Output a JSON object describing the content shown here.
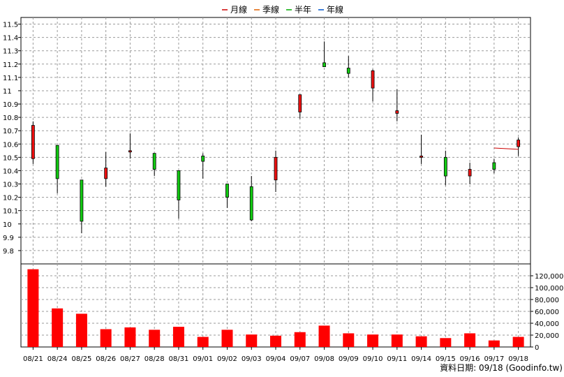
{
  "legend": [
    {
      "label": "月線",
      "color": "#cc0000"
    },
    {
      "label": "季線",
      "color": "#e06000"
    },
    {
      "label": "半年",
      "color": "#00aa00"
    },
    {
      "label": "年線",
      "color": "#0055cc"
    }
  ],
  "source_note": "資料日期: 09/18  (Goodinfo.tw)",
  "chart_data": [
    {
      "type": "candlestick",
      "ylim": [
        9.7,
        11.55
      ],
      "y_ticks": [
        "9.8",
        "9.9",
        "10",
        "10.1",
        "10.2",
        "10.3",
        "10.4",
        "10.5",
        "10.6",
        "10.7",
        "10.8",
        "10.9",
        "11",
        "11.1",
        "11.2",
        "11.3",
        "11.4",
        "11.5"
      ],
      "categories": [
        "08/21",
        "08/24",
        "08/25",
        "08/26",
        "08/27",
        "08/28",
        "08/31",
        "09/01",
        "09/02",
        "09/03",
        "09/04",
        "09/07",
        "09/08",
        "09/09",
        "09/10",
        "09/11",
        "09/14",
        "09/15",
        "09/16",
        "09/17",
        "09/18"
      ],
      "ohlc": [
        {
          "o": 10.49,
          "h": 10.77,
          "l": 10.45,
          "c": 10.74
        },
        {
          "o": 10.59,
          "h": 10.59,
          "l": 10.23,
          "c": 10.34
        },
        {
          "o": 10.33,
          "h": 10.33,
          "l": 9.93,
          "c": 10.02
        },
        {
          "o": 10.34,
          "h": 10.54,
          "l": 10.28,
          "c": 10.42
        },
        {
          "o": 10.54,
          "h": 10.68,
          "l": 10.49,
          "c": 10.55
        },
        {
          "o": 10.53,
          "h": 10.53,
          "l": 10.36,
          "c": 10.41
        },
        {
          "o": 10.4,
          "h": 10.4,
          "l": 10.04,
          "c": 10.18
        },
        {
          "o": 10.51,
          "h": 10.53,
          "l": 10.34,
          "c": 10.47
        },
        {
          "o": 10.3,
          "h": 10.3,
          "l": 10.12,
          "c": 10.2
        },
        {
          "o": 10.28,
          "h": 10.36,
          "l": 10.02,
          "c": 10.03
        },
        {
          "o": 10.33,
          "h": 10.55,
          "l": 10.24,
          "c": 10.5
        },
        {
          "o": 10.84,
          "h": 10.97,
          "l": 10.79,
          "c": 10.97
        },
        {
          "o": 11.21,
          "h": 11.37,
          "l": 11.18,
          "c": 11.18
        },
        {
          "o": 11.17,
          "h": 11.26,
          "l": 11.1,
          "c": 11.13
        },
        {
          "o": 11.02,
          "h": 11.16,
          "l": 10.92,
          "c": 11.15
        },
        {
          "o": 10.83,
          "h": 11.01,
          "l": 10.77,
          "c": 10.85
        },
        {
          "o": 10.5,
          "h": 10.67,
          "l": 10.45,
          "c": 10.51
        },
        {
          "o": 10.5,
          "h": 10.55,
          "l": 10.29,
          "c": 10.36
        },
        {
          "o": 10.36,
          "h": 10.46,
          "l": 10.3,
          "c": 10.41
        },
        {
          "o": 10.46,
          "h": 10.49,
          "l": 10.38,
          "c": 10.41
        },
        {
          "o": 10.58,
          "h": 10.65,
          "l": 10.51,
          "c": 10.63
        }
      ],
      "series": [
        {
          "name": "月線",
          "points": [
            {
              "x": "09/17",
              "y": 10.57
            },
            {
              "x": "09/18",
              "y": 10.56
            }
          ]
        }
      ]
    },
    {
      "type": "bar",
      "ylim": [
        0,
        140000
      ],
      "y_ticks": [
        "0",
        "20,000",
        "40,000",
        "60,000",
        "80,000",
        "100,000",
        "120,000"
      ],
      "categories": [
        "08/21",
        "08/24",
        "08/25",
        "08/26",
        "08/27",
        "08/28",
        "08/31",
        "09/01",
        "09/02",
        "09/03",
        "09/04",
        "09/07",
        "09/08",
        "09/09",
        "09/10",
        "09/11",
        "09/14",
        "09/15",
        "09/16",
        "09/17",
        "09/18"
      ],
      "values": [
        131000,
        65000,
        56000,
        30000,
        33000,
        29000,
        34000,
        17000,
        29000,
        21000,
        19000,
        25000,
        36000,
        23000,
        21000,
        21000,
        18000,
        15000,
        23000,
        11000,
        17000
      ]
    }
  ]
}
